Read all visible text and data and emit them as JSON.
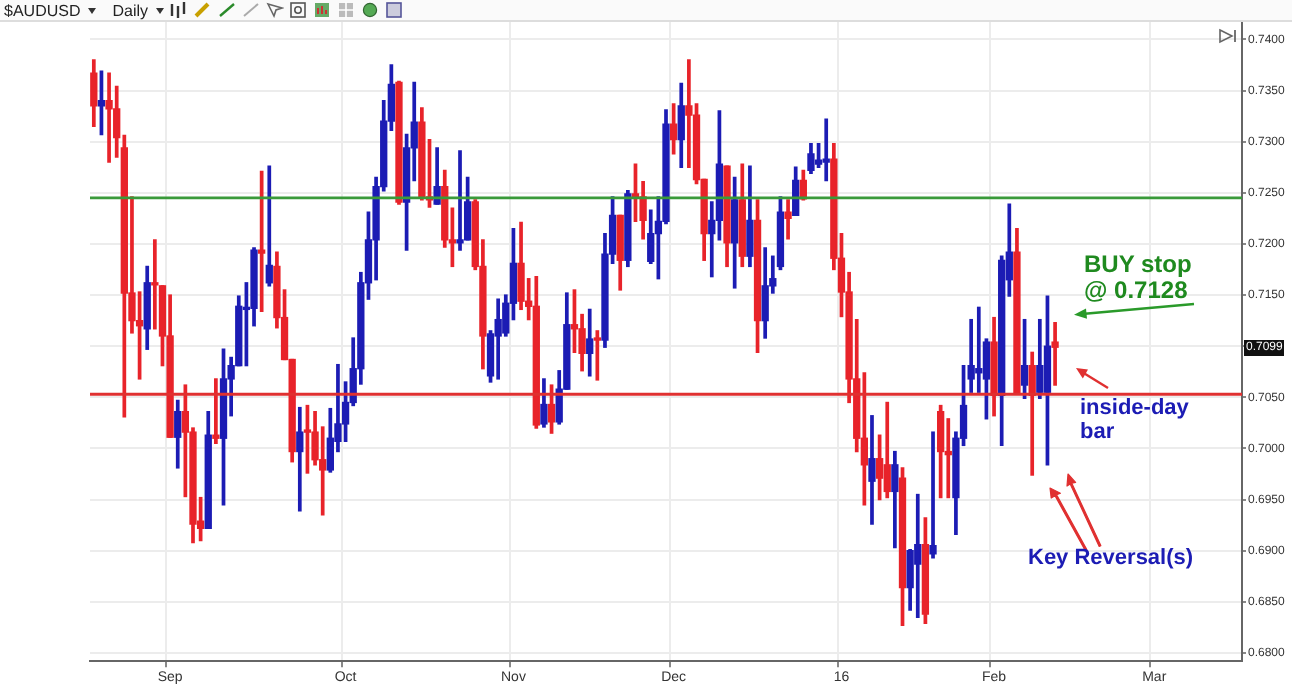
{
  "chart_data": {
    "type": "candlestick",
    "title": "$AUDUSD",
    "subtitle": "Daily",
    "categories": [
      null,
      null,
      null,
      null,
      null,
      null,
      null,
      null,
      null,
      null,
      "Sep",
      null,
      null,
      null,
      null,
      null,
      null,
      null,
      null,
      null,
      null,
      null,
      null,
      null,
      null,
      null,
      null,
      null,
      null,
      null,
      null,
      null,
      null,
      "Oct",
      null,
      null,
      null,
      null,
      null,
      null,
      null,
      null,
      null,
      null,
      null,
      null,
      null,
      null,
      null,
      null,
      null,
      null,
      null,
      null,
      null,
      "Nov",
      null,
      null,
      null,
      null,
      null,
      null,
      null,
      null,
      null,
      null,
      null,
      null,
      null,
      null,
      null,
      null,
      null,
      null,
      null,
      null,
      "Dec",
      null,
      null,
      null,
      null,
      null,
      null,
      null,
      null,
      null,
      null,
      null,
      null,
      null,
      null,
      null,
      null,
      null,
      null,
      null,
      null,
      null,
      "16",
      null,
      null,
      null,
      null,
      null,
      null,
      null,
      null,
      null,
      null,
      null,
      null,
      null,
      null,
      null,
      null,
      null,
      null,
      null,
      "Feb",
      null,
      null,
      null,
      null,
      null,
      null,
      null,
      null,
      null,
      null,
      null,
      null,
      null,
      null,
      null,
      null,
      null,
      null,
      null,
      null,
      "Mar",
      null,
      null,
      null,
      null,
      null,
      null,
      null,
      null,
      null,
      null,
      null
    ],
    "ohlc": [
      [
        0.7367,
        0.738,
        0.7315,
        0.7335
      ],
      [
        0.7335,
        0.7369,
        0.7307,
        0.734
      ],
      [
        0.734,
        0.7367,
        0.728,
        0.7332
      ],
      [
        0.7332,
        0.7354,
        0.7285,
        0.7304
      ],
      [
        0.7294,
        0.7306,
        0.7031,
        0.7152
      ],
      [
        0.7152,
        0.7246,
        0.7113,
        0.7125
      ],
      [
        0.7125,
        0.7153,
        0.7068,
        0.712
      ],
      [
        0.7117,
        0.7178,
        0.7097,
        0.7162
      ],
      [
        0.7162,
        0.7204,
        0.7117,
        0.716
      ],
      [
        0.7159,
        0.7159,
        0.7081,
        0.711
      ],
      [
        0.711,
        0.715,
        0.7011,
        0.7011
      ],
      [
        0.7011,
        0.7047,
        0.6981,
        0.7036
      ],
      [
        0.7036,
        0.7062,
        0.6953,
        0.7016
      ],
      [
        0.7016,
        0.702,
        0.6908,
        0.6926
      ],
      [
        0.6929,
        0.6952,
        0.691,
        0.6922
      ],
      [
        0.6922,
        0.7036,
        0.6922,
        0.7013
      ],
      [
        0.7013,
        0.7068,
        0.7005,
        0.701
      ],
      [
        0.701,
        0.7097,
        0.6945,
        0.7068
      ],
      [
        0.7068,
        0.7089,
        0.7032,
        0.7081
      ],
      [
        0.7081,
        0.7149,
        0.7081,
        0.7139
      ],
      [
        0.7136,
        0.7162,
        0.7081,
        0.7137
      ],
      [
        0.7137,
        0.7196,
        0.712,
        0.7194
      ],
      [
        0.7194,
        0.7271,
        0.7134,
        0.7191
      ],
      [
        0.7162,
        0.7276,
        0.7159,
        0.7179
      ],
      [
        0.7178,
        0.7192,
        0.7118,
        0.7128
      ],
      [
        0.7128,
        0.7155,
        0.7087,
        0.7087
      ],
      [
        0.7087,
        0.7087,
        0.6987,
        0.6997
      ],
      [
        0.6997,
        0.704,
        0.6939,
        0.7016
      ],
      [
        0.7018,
        0.7042,
        0.6976,
        0.7016
      ],
      [
        0.7016,
        0.7036,
        0.6984,
        0.6989
      ],
      [
        0.6989,
        0.7021,
        0.6935,
        0.6979
      ],
      [
        0.6979,
        0.7039,
        0.6977,
        0.701
      ],
      [
        0.7007,
        0.7082,
        0.6997,
        0.7024
      ],
      [
        0.7024,
        0.7065,
        0.7007,
        0.7045
      ],
      [
        0.7045,
        0.7108,
        0.7042,
        0.7078
      ],
      [
        0.7078,
        0.7172,
        0.7063,
        0.7162
      ],
      [
        0.7162,
        0.7231,
        0.7146,
        0.7204
      ],
      [
        0.7204,
        0.7265,
        0.7165,
        0.7256
      ],
      [
        0.7256,
        0.734,
        0.7252,
        0.732
      ],
      [
        0.732,
        0.7375,
        0.7311,
        0.7356
      ],
      [
        0.7358,
        0.7359,
        0.7239,
        0.7241
      ],
      [
        0.7241,
        0.7307,
        0.7194,
        0.7294
      ],
      [
        0.7294,
        0.7358,
        0.7262,
        0.7319
      ],
      [
        0.7319,
        0.7333,
        0.7243,
        0.7246
      ],
      [
        0.7246,
        0.7302,
        0.7236,
        0.7243
      ],
      [
        0.7239,
        0.7294,
        0.7239,
        0.7256
      ],
      [
        0.7256,
        0.7272,
        0.7197,
        0.7204
      ],
      [
        0.7204,
        0.7235,
        0.7178,
        0.7201
      ],
      [
        0.7201,
        0.7291,
        0.7194,
        0.7204
      ],
      [
        0.7204,
        0.7265,
        0.7204,
        0.7241
      ],
      [
        0.7241,
        0.7243,
        0.7175,
        0.7178
      ],
      [
        0.7178,
        0.7204,
        0.7078,
        0.711
      ],
      [
        0.7071,
        0.7115,
        0.7065,
        0.7112
      ],
      [
        0.711,
        0.7146,
        0.7068,
        0.7126
      ],
      [
        0.7113,
        0.715,
        0.711,
        0.7142
      ],
      [
        0.7142,
        0.7215,
        0.7126,
        0.7181
      ],
      [
        0.7181,
        0.7221,
        0.7136,
        0.7144
      ],
      [
        0.7144,
        0.7166,
        0.7126,
        0.7139
      ],
      [
        0.7139,
        0.7168,
        0.702,
        0.7023
      ],
      [
        0.7024,
        0.7068,
        0.7021,
        0.7043
      ],
      [
        0.7043,
        0.7062,
        0.7015,
        0.7026
      ],
      [
        0.7026,
        0.7076,
        0.7024,
        0.7058
      ],
      [
        0.7058,
        0.7152,
        0.7058,
        0.7121
      ],
      [
        0.7121,
        0.7155,
        0.7094,
        0.7117
      ],
      [
        0.7117,
        0.7131,
        0.7076,
        0.7093
      ],
      [
        0.7093,
        0.7136,
        0.7071,
        0.7107
      ],
      [
        0.7108,
        0.7115,
        0.7067,
        0.7106
      ],
      [
        0.7106,
        0.721,
        0.7099,
        0.719
      ],
      [
        0.719,
        0.7246,
        0.7181,
        0.7228
      ],
      [
        0.7228,
        0.7228,
        0.7155,
        0.7184
      ],
      [
        0.7184,
        0.7252,
        0.7178,
        0.7249
      ],
      [
        0.7249,
        0.7278,
        0.7222,
        0.7246
      ],
      [
        0.7246,
        0.7261,
        0.7205,
        0.7223
      ],
      [
        0.7183,
        0.7233,
        0.7181,
        0.721
      ],
      [
        0.721,
        0.7246,
        0.7166,
        0.7222
      ],
      [
        0.7222,
        0.7331,
        0.722,
        0.7317
      ],
      [
        0.7317,
        0.7337,
        0.7288,
        0.7302
      ],
      [
        0.7302,
        0.7357,
        0.7275,
        0.7335
      ],
      [
        0.7335,
        0.738,
        0.7275,
        0.7326
      ],
      [
        0.7326,
        0.7337,
        0.7259,
        0.7263
      ],
      [
        0.7263,
        0.7263,
        0.7184,
        0.721
      ],
      [
        0.721,
        0.7241,
        0.7168,
        0.7223
      ],
      [
        0.7223,
        0.733,
        0.7204,
        0.7278
      ],
      [
        0.7276,
        0.7276,
        0.7178,
        0.7201
      ],
      [
        0.7201,
        0.7265,
        0.7157,
        0.7243
      ],
      [
        0.7243,
        0.7278,
        0.7178,
        0.7188
      ],
      [
        0.7188,
        0.7276,
        0.7178,
        0.7223
      ],
      [
        0.7223,
        0.7243,
        0.7094,
        0.7125
      ],
      [
        0.7125,
        0.7196,
        0.7108,
        0.7159
      ],
      [
        0.7159,
        0.7188,
        0.7152,
        0.7166
      ],
      [
        0.7178,
        0.7246,
        0.7175,
        0.7231
      ],
      [
        0.7231,
        0.7243,
        0.7205,
        0.7225
      ],
      [
        0.7228,
        0.7275,
        0.7228,
        0.7262
      ],
      [
        0.7262,
        0.7272,
        0.7243,
        0.7244
      ],
      [
        0.7272,
        0.7298,
        0.7269,
        0.7288
      ],
      [
        0.7278,
        0.7298,
        0.7275,
        0.7282
      ],
      [
        0.728,
        0.7322,
        0.7262,
        0.7283
      ],
      [
        0.7283,
        0.7298,
        0.7175,
        0.7186
      ],
      [
        0.7186,
        0.721,
        0.7129,
        0.7153
      ],
      [
        0.7153,
        0.7172,
        0.7045,
        0.7068
      ],
      [
        0.7068,
        0.7126,
        0.6997,
        0.701
      ],
      [
        0.701,
        0.7074,
        0.6945,
        0.6984
      ],
      [
        0.6968,
        0.7032,
        0.6926,
        0.699
      ],
      [
        0.699,
        0.7013,
        0.695,
        0.6971
      ],
      [
        0.6984,
        0.7045,
        0.6952,
        0.6958
      ],
      [
        0.6958,
        0.6997,
        0.6903,
        0.6984
      ],
      [
        0.6971,
        0.6981,
        0.6827,
        0.6864
      ],
      [
        0.6864,
        0.6901,
        0.6842,
        0.69
      ],
      [
        0.6887,
        0.6955,
        0.6835,
        0.6906
      ],
      [
        0.6906,
        0.6932,
        0.6829,
        0.6838
      ],
      [
        0.6897,
        0.7016,
        0.6893,
        0.6905
      ],
      [
        0.7036,
        0.7042,
        0.6952,
        0.6997
      ],
      [
        0.6997,
        0.7029,
        0.6952,
        0.6994
      ],
      [
        0.6952,
        0.7016,
        0.6916,
        0.701
      ],
      [
        0.701,
        0.7081,
        0.7003,
        0.7042
      ],
      [
        0.7068,
        0.7126,
        0.7055,
        0.7081
      ],
      [
        0.7074,
        0.7138,
        0.7055,
        0.7078
      ],
      [
        0.7068,
        0.7107,
        0.7029,
        0.7104
      ],
      [
        0.7104,
        0.7128,
        0.7032,
        0.7052
      ],
      [
        0.7052,
        0.7188,
        0.7003,
        0.7184
      ],
      [
        0.7165,
        0.7239,
        0.7149,
        0.7192
      ],
      [
        0.7192,
        0.7215,
        0.7055,
        0.7055
      ],
      [
        0.7062,
        0.7126,
        0.7049,
        0.7081
      ],
      [
        0.7081,
        0.7094,
        0.6974,
        0.7052
      ],
      [
        0.7055,
        0.7126,
        0.7049,
        0.7081
      ],
      [
        0.7055,
        0.7149,
        0.6984,
        0.71
      ],
      [
        0.7104,
        0.7123,
        0.7062,
        0.7099
      ],
      null,
      null,
      null,
      null,
      null,
      null,
      null,
      null,
      null,
      null,
      null,
      null,
      null,
      null,
      null,
      null,
      null,
      null,
      null,
      null,
      null,
      null,
      null,
      null
    ],
    "colors": [
      "#e8232a",
      "#1c1cb4",
      "#e8232a",
      "#e8232a",
      "#e8232a",
      "#e8232a",
      "#e8232a",
      "#1c1cb4",
      "#e8232a",
      "#e8232a",
      "#e8232a",
      "#1c1cb4",
      "#e8232a",
      "#e8232a",
      "#e8232a",
      "#1c1cb4",
      "#e8232a",
      "#1c1cb4",
      "#1c1cb4",
      "#1c1cb4",
      "#1c1cb4",
      "#1c1cb4",
      "#e8232a",
      "#1c1cb4",
      "#e8232a",
      "#e8232a",
      "#e8232a",
      "#1c1cb4",
      "#e8232a",
      "#e8232a",
      "#e8232a",
      "#1c1cb4",
      "#1c1cb4",
      "#1c1cb4",
      "#1c1cb4",
      "#1c1cb4",
      "#1c1cb4",
      "#1c1cb4",
      "#1c1cb4",
      "#1c1cb4",
      "#e8232a",
      "#1c1cb4",
      "#1c1cb4",
      "#e8232a",
      "#e8232a",
      "#1c1cb4",
      "#e8232a",
      "#e8232a",
      "#1c1cb4",
      "#1c1cb4",
      "#e8232a",
      "#e8232a",
      "#1c1cb4",
      "#1c1cb4",
      "#1c1cb4",
      "#1c1cb4",
      "#e8232a",
      "#e8232a",
      "#e8232a",
      "#1c1cb4",
      "#e8232a",
      "#1c1cb4",
      "#1c1cb4",
      "#e8232a",
      "#e8232a",
      "#1c1cb4",
      "#e8232a",
      "#1c1cb4",
      "#1c1cb4",
      "#e8232a",
      "#1c1cb4",
      "#e8232a",
      "#e8232a",
      "#1c1cb4",
      "#1c1cb4",
      "#1c1cb4",
      "#e8232a",
      "#1c1cb4",
      "#e8232a",
      "#e8232a",
      "#e8232a",
      "#1c1cb4",
      "#1c1cb4",
      "#e8232a",
      "#1c1cb4",
      "#e8232a",
      "#1c1cb4",
      "#e8232a",
      "#1c1cb4",
      "#1c1cb4",
      "#1c1cb4",
      "#e8232a",
      "#1c1cb4",
      "#e8232a",
      "#1c1cb4",
      "#1c1cb4",
      "#1c1cb4",
      "#e8232a",
      "#e8232a",
      "#e8232a",
      "#e8232a",
      "#e8232a",
      "#1c1cb4",
      "#e8232a",
      "#e8232a",
      "#1c1cb4",
      "#e8232a",
      "#1c1cb4",
      "#1c1cb4",
      "#e8232a",
      "#1c1cb4",
      "#e8232a",
      "#e8232a",
      "#1c1cb4",
      "#1c1cb4",
      "#1c1cb4",
      "#1c1cb4",
      "#1c1cb4",
      "#e8232a",
      "#1c1cb4",
      "#1c1cb4",
      "#e8232a",
      "#1c1cb4",
      "#e8232a",
      "#1c1cb4",
      "#1c1cb4",
      "#e8232a",
      null,
      null,
      null,
      null,
      null,
      null,
      null,
      null,
      null,
      null,
      null,
      null,
      null,
      null,
      null,
      null,
      null,
      null,
      null,
      null,
      null,
      null,
      null,
      null
    ],
    "ylim": [
      0.6792,
      0.7417
    ],
    "yticks": [
      {
        "value": 0.68,
        "label": "0.6800"
      },
      {
        "value": 0.685,
        "label": "0.6850"
      },
      {
        "value": 0.69,
        "label": "0.6900"
      },
      {
        "value": 0.695,
        "label": "0.6950"
      },
      {
        "value": 0.7,
        "label": "0.7000"
      },
      {
        "value": 0.705,
        "label": "0.7050"
      },
      {
        "value": 0.71,
        "label": null
      },
      {
        "value": 0.715,
        "label": "0.7150"
      },
      {
        "value": 0.72,
        "label": "0.7200"
      },
      {
        "value": 0.725,
        "label": "0.7250"
      },
      {
        "value": 0.73,
        "label": "0.7300"
      },
      {
        "value": 0.735,
        "label": "0.7350"
      },
      {
        "value": 0.74,
        "label": "0.7400"
      }
    ],
    "grid": true,
    "ref_lines": [
      {
        "axis": "y",
        "value": 0.7245,
        "color": "#3a9a3a"
      },
      {
        "axis": "y",
        "value": 0.7053,
        "color": "#e03030"
      }
    ],
    "annotations": [
      "BUY stop\n@ 0.7128",
      "inside-day\nbar",
      "Key Reversal(s)",
      {
        "text": "0.7099",
        "y": 0.7099
      }
    ]
  }
}
